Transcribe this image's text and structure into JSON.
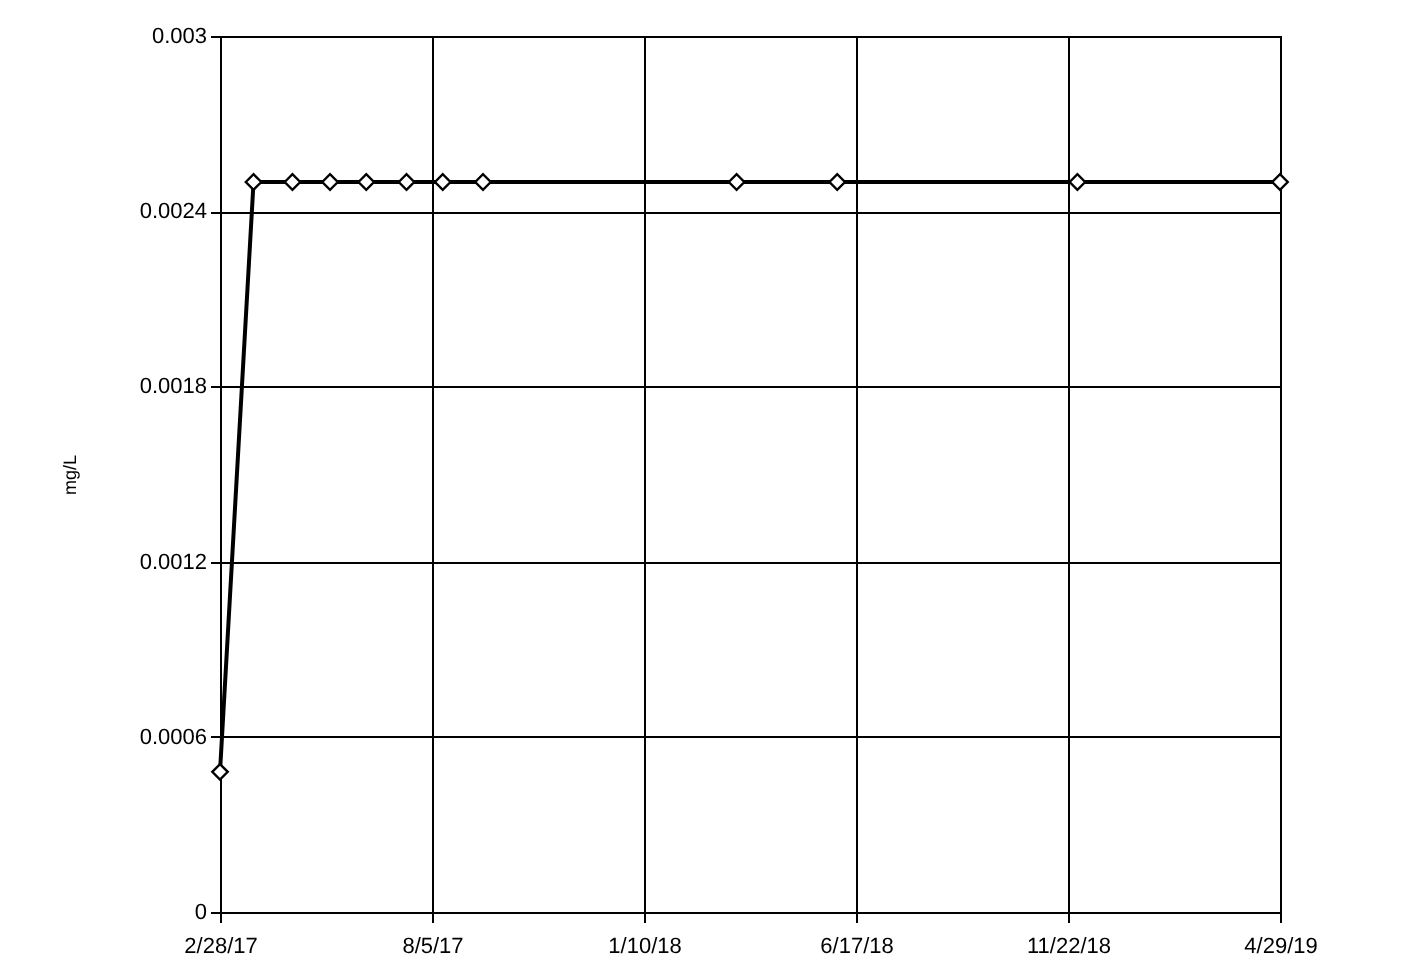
{
  "chart_data": {
    "type": "line",
    "ylabel": "mg/L",
    "x": [
      "2017-02-28",
      "2017-03-25",
      "2017-04-23",
      "2017-05-21",
      "2017-06-17",
      "2017-07-17",
      "2017-08-13",
      "2017-09-12",
      "2018-03-20",
      "2018-06-03",
      "2018-11-29",
      "2019-04-29"
    ],
    "series": [
      {
        "color": "#000000",
        "values": [
          0.00048,
          0.0025,
          0.0025,
          0.0025,
          0.0025,
          0.0025,
          0.0025,
          0.0025,
          0.0025,
          0.0025,
          0.0025,
          0.0025
        ]
      }
    ],
    "xlim": [
      "2017-02-28",
      "2019-04-29"
    ],
    "xticks": [
      {
        "value": "2017-02-28",
        "label": "2/28/17"
      },
      {
        "value": "2017-08-05",
        "label": "8/5/17"
      },
      {
        "value": "2018-01-10",
        "label": "1/10/18"
      },
      {
        "value": "2018-06-17",
        "label": "6/17/18"
      },
      {
        "value": "2018-11-22",
        "label": "11/22/18"
      },
      {
        "value": "2019-04-29",
        "label": "4/29/19"
      }
    ],
    "ylim": [
      0,
      0.003
    ],
    "yticks": [
      0,
      0.0006,
      0.0012,
      0.0018,
      0.0024,
      0.003
    ],
    "grid": true,
    "marker": "diamond",
    "line_style": "solid"
  }
}
